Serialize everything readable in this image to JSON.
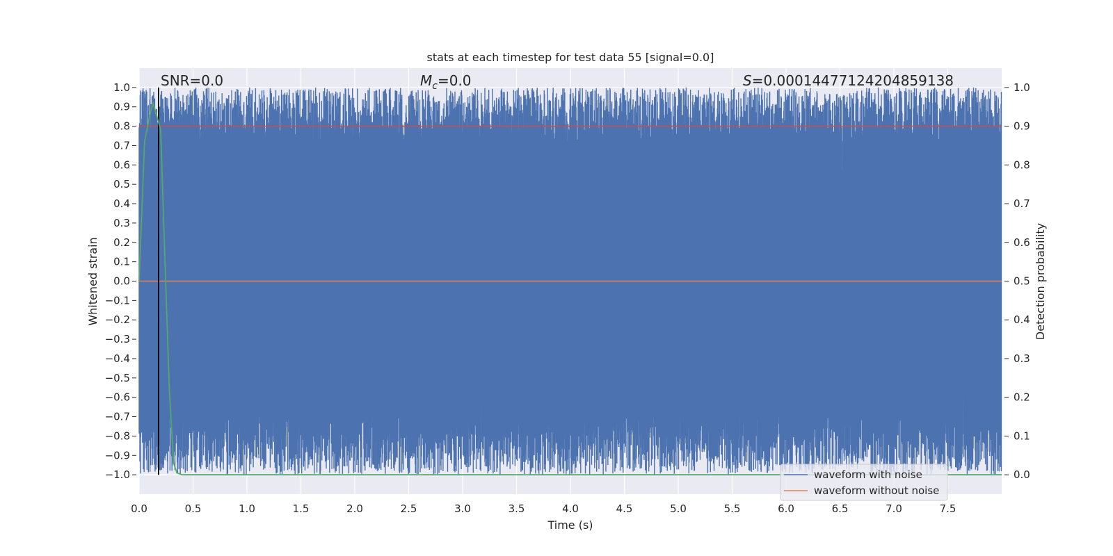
{
  "chart_data": {
    "type": "line",
    "title": "stats at each timestep for test data 55 [signal=0.0]",
    "xlabel": "Time (s)",
    "ylabel": "Whitened strain",
    "y2label": "Detection probability",
    "xlim": [
      0.0,
      8.0
    ],
    "ylim": [
      -1.1,
      1.1
    ],
    "y2lim": [
      -0.05,
      1.05
    ],
    "x_ticks": [
      0.0,
      0.5,
      1.0,
      1.5,
      2.0,
      2.5,
      3.0,
      3.5,
      4.0,
      4.5,
      5.0,
      5.5,
      6.0,
      6.5,
      7.0,
      7.5
    ],
    "x_tick_labels": [
      "0.0",
      "0.5",
      "1.0",
      "1.5",
      "2.0",
      "2.5",
      "3.0",
      "3.5",
      "4.0",
      "4.5",
      "5.0",
      "5.5",
      "6.0",
      "6.5",
      "7.0",
      "7.5"
    ],
    "y_ticks": [
      1.0,
      0.9,
      0.8,
      0.7,
      0.6,
      0.5,
      0.4,
      0.3,
      0.2,
      0.1,
      0.0,
      -0.1,
      -0.2,
      -0.3,
      -0.4,
      -0.5,
      -0.6,
      -0.7,
      -0.8,
      -0.9,
      -1.0
    ],
    "y_tick_labels": [
      "1.0",
      "0.9",
      "0.8",
      "0.7",
      "0.6",
      "0.5",
      "0.4",
      "0.3",
      "0.2",
      "0.1",
      "0.0",
      "−0.1",
      "−0.2",
      "−0.3",
      "−0.4",
      "−0.5",
      "−0.6",
      "−0.7",
      "−0.8",
      "−0.9",
      "−1.0"
    ],
    "y2_ticks": [
      1.0,
      0.9,
      0.8,
      0.7,
      0.6,
      0.5,
      0.4,
      0.3,
      0.2,
      0.1,
      0.0
    ],
    "y2_tick_labels": [
      "1.0",
      "0.9",
      "0.8",
      "0.7",
      "0.6",
      "0.5",
      "0.4",
      "0.3",
      "0.2",
      "0.1",
      "0.0"
    ],
    "grid": true,
    "series": [
      {
        "name": "waveform with noise",
        "color": "#4c72b0",
        "description_range": [
          -1.0,
          1.0
        ],
        "axis": "left",
        "style": "dense-noise"
      },
      {
        "name": "waveform without noise",
        "color": "#dd8452",
        "values_constant": 0.0,
        "axis": "left"
      },
      {
        "name": "detection probability",
        "color": "#55a868",
        "axis": "right",
        "x": [
          0.0,
          0.05,
          0.1,
          0.13,
          0.16,
          0.2,
          0.24,
          0.28,
          0.32,
          0.35,
          0.4,
          8.0
        ],
        "values": [
          0.5,
          0.86,
          0.93,
          0.96,
          0.93,
          0.89,
          0.55,
          0.22,
          0.03,
          0.005,
          0.0,
          0.0
        ]
      },
      {
        "name": "threshold",
        "color": "#c44e52",
        "axis": "right",
        "values_constant": 0.9
      },
      {
        "name": "marker",
        "color": "#000000",
        "axis": "left",
        "x_constant": 0.18
      }
    ],
    "annotations": {
      "snr": "SNR=0.0",
      "mc_symbol": "M",
      "mc_sub": "c",
      "mc_value": "=0.0",
      "s_symbol": "S",
      "s_value": "=0.00014477124204859138"
    },
    "legend": {
      "position": "bottom-right",
      "entries": [
        {
          "label": "waveform with noise",
          "color": "#4c72b0"
        },
        {
          "label": "waveform without noise",
          "color": "#dd8452"
        }
      ]
    },
    "colors": {
      "background": "#eaeaf2",
      "grid": "#ffffff",
      "text": "#262626"
    }
  }
}
